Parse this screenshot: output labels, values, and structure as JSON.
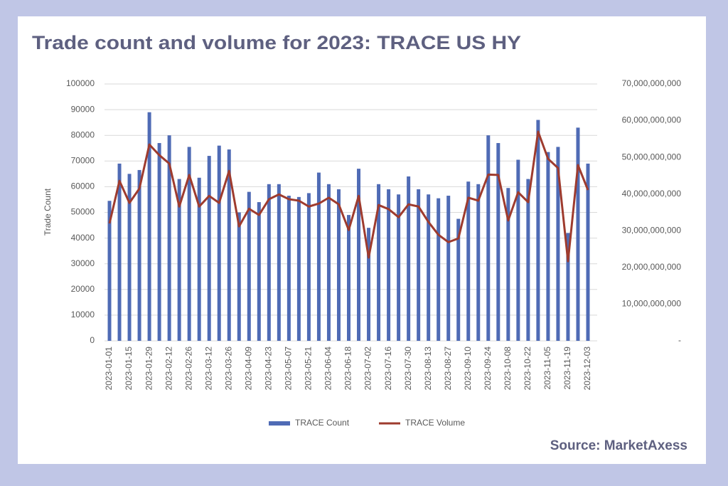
{
  "chart_data": {
    "type": "bar",
    "title": "Trade count and volume for 2023: TRACE US HY",
    "source": "Source: MarketAxess",
    "y_label": "Trade Count",
    "categories": [
      "2023-01-01",
      null,
      "2023-01-15",
      null,
      "2023-01-29",
      null,
      "2023-02-12",
      null,
      "2023-02-26",
      null,
      "2023-03-12",
      null,
      "2023-03-26",
      null,
      "2023-04-09",
      null,
      "2023-04-23",
      null,
      "2023-05-07",
      null,
      "2023-05-21",
      null,
      "2023-06-04",
      null,
      "2023-06-18",
      null,
      "2023-07-02",
      null,
      "2023-07-16",
      null,
      "2023-07-30",
      null,
      "2023-08-13",
      null,
      "2023-08-27",
      null,
      "2023-09-10",
      null,
      "2023-09-24",
      null,
      "2023-10-08",
      null,
      "2023-10-22",
      null,
      "2023-11-05",
      null,
      "2023-11-19",
      null,
      "2023-12-03"
    ],
    "series": [
      {
        "name": "TRACE Count",
        "type": "bar",
        "color": "#4f6bb5",
        "values": [
          54500,
          69000,
          65000,
          66500,
          89000,
          77000,
          80000,
          63000,
          75500,
          63500,
          72000,
          76000,
          74500,
          50000,
          58000,
          54000,
          61000,
          61000,
          56500,
          56000,
          57500,
          65500,
          61000,
          59000,
          49000,
          67000,
          44000,
          61000,
          59000,
          57000,
          64000,
          59000,
          57000,
          55500,
          56500,
          47500,
          62000,
          61000,
          80000,
          77000,
          59500,
          70500,
          63000,
          86000,
          73500,
          75500,
          42000,
          83000,
          69000
        ]
      },
      {
        "name": "TRACE Volume",
        "type": "line",
        "axis": "y2",
        "color": "#9e3b2e",
        "values": [
          32000000000,
          43600000000,
          37600000000,
          41500000000,
          53500000000,
          50600000000,
          48300000000,
          36600000000,
          45200000000,
          36600000000,
          39500000000,
          37600000000,
          46300000000,
          31200000000,
          36000000000,
          34300000000,
          38600000000,
          39900000000,
          38600000000,
          38200000000,
          36600000000,
          37400000000,
          39000000000,
          37200000000,
          30200000000,
          39500000000,
          22700000000,
          37000000000,
          35900000000,
          33700000000,
          37200000000,
          36600000000,
          32400000000,
          28900000000,
          26900000000,
          27900000000,
          39000000000,
          38200000000,
          45300000000,
          45200000000,
          32800000000,
          40500000000,
          37800000000,
          57000000000,
          49600000000,
          47100000000,
          21700000000,
          47900000000,
          41100000000
        ]
      }
    ],
    "ylim": [
      0,
      100000
    ],
    "yticks": [
      0,
      10000,
      20000,
      30000,
      40000,
      50000,
      60000,
      70000,
      80000,
      90000,
      100000
    ],
    "y2lim": [
      0,
      70000000000
    ],
    "y2ticks": [
      {
        "value": 0,
        "label": "-"
      },
      {
        "value": 10000000000,
        "label": "10,000,000,000"
      },
      {
        "value": 20000000000,
        "label": "20,000,000,000"
      },
      {
        "value": 30000000000,
        "label": "30,000,000,000"
      },
      {
        "value": 40000000000,
        "label": "40,000,000,000"
      },
      {
        "value": 50000000000,
        "label": "50,000,000,000"
      },
      {
        "value": 60000000000,
        "label": "60,000,000,000"
      },
      {
        "value": 70000000000,
        "label": "70,000,000,000"
      }
    ],
    "grid": true,
    "legend": "bottom"
  }
}
